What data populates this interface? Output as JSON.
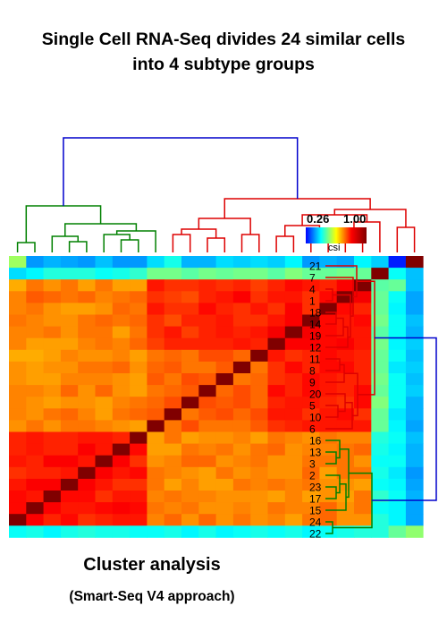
{
  "title": {
    "line1": "Single Cell RNA-Seq divides 24 similar cells",
    "line2": "into 4 subtype groups"
  },
  "caption": {
    "main": "Cluster analysis",
    "sub": "(Smart-Seq V4 approach)"
  },
  "colorbar": {
    "min_label": "0.26",
    "max_label": "1.00",
    "name": "csi",
    "min": 0.26,
    "max": 1.0,
    "colors": [
      "#0000ff",
      "#00ffff",
      "#ffff00",
      "#ff0000",
      "#800000"
    ]
  },
  "chart_data": {
    "type": "heatmap",
    "title": "Single Cell RNA-Seq divides 24 similar cells into 4 subtype groups",
    "row_labels": [
      "21",
      "7",
      "4",
      "1",
      "18",
      "14",
      "19",
      "12",
      "11",
      "8",
      "9",
      "20",
      "5",
      "10",
      "6",
      "16",
      "13",
      "3",
      "2",
      "23",
      "17",
      "15",
      "24",
      "22"
    ],
    "groups": [
      {
        "color": "#dd0000",
        "members": [
          "21",
          "7",
          "4",
          "1",
          "18",
          "14",
          "19",
          "12",
          "11",
          "8",
          "9",
          "20",
          "5",
          "10",
          "6"
        ]
      },
      {
        "color": "#008000",
        "members": [
          "16",
          "13",
          "3",
          "2",
          "23",
          "17",
          "15",
          "24",
          "22"
        ]
      }
    ],
    "dendrogram_root_color": "#0000cc",
    "value_range": [
      0.26,
      1.0
    ],
    "values": [
      [
        0.56,
        0.37,
        0.39,
        0.38,
        0.37,
        0.4,
        0.37,
        0.37,
        0.42,
        0.46,
        0.39,
        0.39,
        0.42,
        0.41,
        0.42,
        0.41,
        0.44,
        0.37,
        0.39,
        0.38,
        0.44,
        0.41,
        0.28,
        1.0
      ],
      [
        0.42,
        0.44,
        0.47,
        0.47,
        0.47,
        0.45,
        0.46,
        0.48,
        0.53,
        0.53,
        0.51,
        0.53,
        0.52,
        0.53,
        0.53,
        0.51,
        0.54,
        0.52,
        0.52,
        0.53,
        0.52,
        1.0,
        0.45,
        0.4
      ],
      [
        0.69,
        0.73,
        0.71,
        0.73,
        0.7,
        0.73,
        0.7,
        0.7,
        0.8,
        0.78,
        0.78,
        0.79,
        0.78,
        0.79,
        0.77,
        0.79,
        0.81,
        0.8,
        0.79,
        0.82,
        1.0,
        0.51,
        0.52,
        0.4
      ],
      [
        0.72,
        0.75,
        0.74,
        0.73,
        0.74,
        0.72,
        0.73,
        0.74,
        0.78,
        0.77,
        0.76,
        0.79,
        0.8,
        0.82,
        0.78,
        0.8,
        0.8,
        0.78,
        0.81,
        1.0,
        0.83,
        0.52,
        0.45,
        0.38
      ],
      [
        0.72,
        0.73,
        0.71,
        0.7,
        0.7,
        0.71,
        0.74,
        0.73,
        0.8,
        0.78,
        0.78,
        0.81,
        0.79,
        0.78,
        0.8,
        0.78,
        0.82,
        0.78,
        1.0,
        0.81,
        0.79,
        0.52,
        0.44,
        0.38
      ],
      [
        0.73,
        0.72,
        0.71,
        0.71,
        0.73,
        0.74,
        0.73,
        0.74,
        0.78,
        0.76,
        0.79,
        0.79,
        0.8,
        0.78,
        0.78,
        0.8,
        0.82,
        1.0,
        0.81,
        0.8,
        0.81,
        0.53,
        0.45,
        0.4
      ],
      [
        0.72,
        0.72,
        0.73,
        0.71,
        0.73,
        0.73,
        0.7,
        0.73,
        0.78,
        0.8,
        0.77,
        0.79,
        0.8,
        0.79,
        0.8,
        0.83,
        1.0,
        0.83,
        0.81,
        0.8,
        0.8,
        0.51,
        0.45,
        0.39
      ],
      [
        0.72,
        0.7,
        0.7,
        0.7,
        0.72,
        0.73,
        0.72,
        0.74,
        0.77,
        0.79,
        0.79,
        0.79,
        0.79,
        0.8,
        0.79,
        1.0,
        0.82,
        0.82,
        0.81,
        0.82,
        0.8,
        0.53,
        0.44,
        0.41
      ],
      [
        0.69,
        0.69,
        0.7,
        0.72,
        0.71,
        0.71,
        0.72,
        0.7,
        0.73,
        0.74,
        0.73,
        0.76,
        0.76,
        0.74,
        1.0,
        0.8,
        0.78,
        0.79,
        0.81,
        0.8,
        0.79,
        0.52,
        0.45,
        0.4
      ],
      [
        0.71,
        0.7,
        0.71,
        0.71,
        0.73,
        0.73,
        0.74,
        0.71,
        0.74,
        0.75,
        0.73,
        0.73,
        0.75,
        1.0,
        0.73,
        0.78,
        0.81,
        0.79,
        0.81,
        0.81,
        0.79,
        0.52,
        0.43,
        0.41
      ],
      [
        0.71,
        0.7,
        0.7,
        0.72,
        0.72,
        0.72,
        0.71,
        0.7,
        0.75,
        0.73,
        0.76,
        0.75,
        1.0,
        0.73,
        0.74,
        0.78,
        0.79,
        0.81,
        0.8,
        0.79,
        0.79,
        0.53,
        0.45,
        0.4
      ],
      [
        0.72,
        0.72,
        0.71,
        0.74,
        0.71,
        0.74,
        0.71,
        0.7,
        0.73,
        0.74,
        0.75,
        1.0,
        0.74,
        0.76,
        0.74,
        0.81,
        0.79,
        0.81,
        0.8,
        0.79,
        0.81,
        0.52,
        0.45,
        0.41
      ],
      [
        0.72,
        0.71,
        0.7,
        0.71,
        0.71,
        0.7,
        0.72,
        0.73,
        0.74,
        0.76,
        1.0,
        0.76,
        0.75,
        0.76,
        0.74,
        0.79,
        0.8,
        0.8,
        0.79,
        0.78,
        0.81,
        0.54,
        0.45,
        0.39
      ],
      [
        0.72,
        0.71,
        0.73,
        0.74,
        0.72,
        0.7,
        0.73,
        0.74,
        0.75,
        1.0,
        0.73,
        0.75,
        0.76,
        0.74,
        0.76,
        0.8,
        0.8,
        0.78,
        0.8,
        0.81,
        0.78,
        0.52,
        0.43,
        0.39
      ],
      [
        0.71,
        0.73,
        0.71,
        0.73,
        0.73,
        0.72,
        0.71,
        0.7,
        1.0,
        0.73,
        0.76,
        0.73,
        0.73,
        0.73,
        0.75,
        0.78,
        0.79,
        0.8,
        0.8,
        0.8,
        0.8,
        0.52,
        0.44,
        0.38
      ],
      [
        0.79,
        0.8,
        0.79,
        0.79,
        0.8,
        0.8,
        0.79,
        1.0,
        0.7,
        0.73,
        0.7,
        0.71,
        0.71,
        0.72,
        0.7,
        0.73,
        0.72,
        0.71,
        0.73,
        0.72,
        0.72,
        0.47,
        0.45,
        0.4
      ],
      [
        0.79,
        0.8,
        0.79,
        0.79,
        0.82,
        0.8,
        1.0,
        0.81,
        0.7,
        0.7,
        0.73,
        0.72,
        0.73,
        0.71,
        0.73,
        0.74,
        0.71,
        0.72,
        0.72,
        0.73,
        0.74,
        0.46,
        0.44,
        0.39
      ],
      [
        0.8,
        0.79,
        0.82,
        0.82,
        0.8,
        1.0,
        0.82,
        0.78,
        0.71,
        0.72,
        0.74,
        0.74,
        0.71,
        0.72,
        0.73,
        0.71,
        0.71,
        0.73,
        0.73,
        0.73,
        0.71,
        0.45,
        0.45,
        0.39
      ],
      [
        0.78,
        0.79,
        0.79,
        0.8,
        1.0,
        0.82,
        0.8,
        0.81,
        0.73,
        0.72,
        0.71,
        0.7,
        0.73,
        0.71,
        0.72,
        0.71,
        0.71,
        0.74,
        0.7,
        0.73,
        0.73,
        0.46,
        0.43,
        0.37
      ],
      [
        0.8,
        0.82,
        0.82,
        1.0,
        0.82,
        0.8,
        0.78,
        0.78,
        0.73,
        0.7,
        0.72,
        0.7,
        0.7,
        0.73,
        0.72,
        0.73,
        0.72,
        0.73,
        0.71,
        0.71,
        0.7,
        0.45,
        0.44,
        0.38
      ],
      [
        0.81,
        0.8,
        1.0,
        0.81,
        0.81,
        0.78,
        0.8,
        0.8,
        0.72,
        0.73,
        0.72,
        0.72,
        0.71,
        0.71,
        0.71,
        0.7,
        0.72,
        0.7,
        0.71,
        0.7,
        0.73,
        0.48,
        0.45,
        0.39
      ],
      [
        0.81,
        1.0,
        0.82,
        0.8,
        0.8,
        0.81,
        0.82,
        0.81,
        0.73,
        0.72,
        0.73,
        0.71,
        0.71,
        0.72,
        0.71,
        0.73,
        0.72,
        0.72,
        0.74,
        0.71,
        0.73,
        0.45,
        0.44,
        0.38
      ],
      [
        1.0,
        0.82,
        0.79,
        0.81,
        0.78,
        0.79,
        0.8,
        0.8,
        0.72,
        0.74,
        0.71,
        0.74,
        0.71,
        0.73,
        0.71,
        0.72,
        0.7,
        0.73,
        0.74,
        0.71,
        0.71,
        0.47,
        0.44,
        0.38
      ],
      [
        0.45,
        0.46,
        0.44,
        0.46,
        0.47,
        0.46,
        0.46,
        0.45,
        0.45,
        0.46,
        0.44,
        0.46,
        0.44,
        0.45,
        0.46,
        0.45,
        0.46,
        0.44,
        0.45,
        0.46,
        0.47,
        0.47,
        0.52,
        0.55
      ]
    ]
  }
}
